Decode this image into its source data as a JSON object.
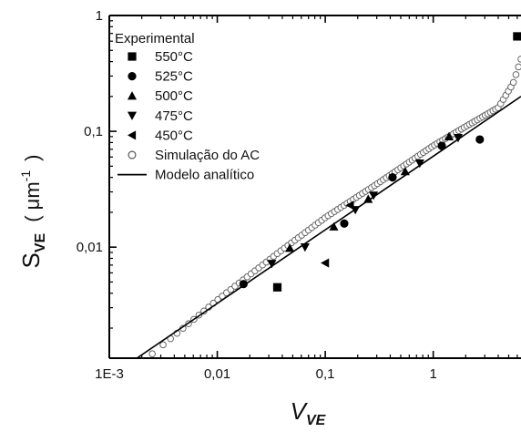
{
  "chart_data": {
    "type": "scatter",
    "x_scale": "log",
    "y_scale": "log",
    "xlim": [
      0.001,
      6.5
    ],
    "ylim": [
      0.0011,
      1
    ],
    "x_ticks": [
      {
        "value": 0.001,
        "label": "1E-3"
      },
      {
        "value": 0.01,
        "label": "0,01"
      },
      {
        "value": 0.1,
        "label": "0,1"
      },
      {
        "value": 1,
        "label": "1"
      }
    ],
    "y_ticks": [
      {
        "value": 0.01,
        "label": "0,01"
      },
      {
        "value": 0.1,
        "label": "0,1"
      },
      {
        "value": 1,
        "label": "1"
      }
    ],
    "xlabel": {
      "main": "V",
      "sub": "VE"
    },
    "ylabel": {
      "main": "S",
      "sub": "VE",
      "unit": "( μm",
      "exp": "-1",
      "close": ")"
    },
    "legend_title": "Experimental",
    "legend_position": "top-left",
    "grid": false,
    "series": [
      {
        "name": "550°C",
        "marker": "square",
        "points": [
          [
            0.036,
            0.0045
          ],
          [
            6.0,
            0.66
          ]
        ]
      },
      {
        "name": "525°C",
        "marker": "circle",
        "points": [
          [
            0.0175,
            0.0048
          ],
          [
            0.15,
            0.016
          ],
          [
            0.42,
            0.04
          ],
          [
            1.2,
            0.075
          ],
          [
            2.7,
            0.085
          ]
        ]
      },
      {
        "name": "500°C",
        "marker": "triangle-up",
        "points": [
          [
            0.047,
            0.0098
          ],
          [
            0.12,
            0.015
          ],
          [
            0.25,
            0.026
          ],
          [
            0.55,
            0.045
          ],
          [
            1.4,
            0.09
          ]
        ]
      },
      {
        "name": "475°C",
        "marker": "triangle-down",
        "points": [
          [
            0.032,
            0.0072
          ],
          [
            0.065,
            0.01
          ],
          [
            0.19,
            0.021
          ],
          [
            0.28,
            0.028
          ],
          [
            0.75,
            0.053
          ],
          [
            1.7,
            0.088
          ]
        ]
      },
      {
        "name": "450°C",
        "marker": "triangle-left",
        "points": [
          [
            0.1,
            0.0073
          ],
          [
            0.17,
            0.023
          ]
        ]
      },
      {
        "name": "Simulação do AC",
        "marker": "open-circle",
        "x_range": [
          0.0025,
          6.5
        ],
        "description_points": [
          [
            0.0025,
            0.0012
          ],
          [
            0.01,
            0.0035
          ],
          [
            0.04,
            0.0095
          ],
          [
            0.1,
            0.018
          ],
          [
            0.3,
            0.035
          ],
          [
            1,
            0.075
          ],
          [
            2,
            0.11
          ],
          [
            4,
            0.16
          ],
          [
            5.5,
            0.26
          ],
          [
            6.5,
            0.42
          ]
        ]
      },
      {
        "name": "Modelo analítico",
        "marker": "line",
        "points": [
          [
            0.0018,
            0.0011
          ],
          [
            6.5,
            0.2
          ]
        ]
      }
    ]
  }
}
